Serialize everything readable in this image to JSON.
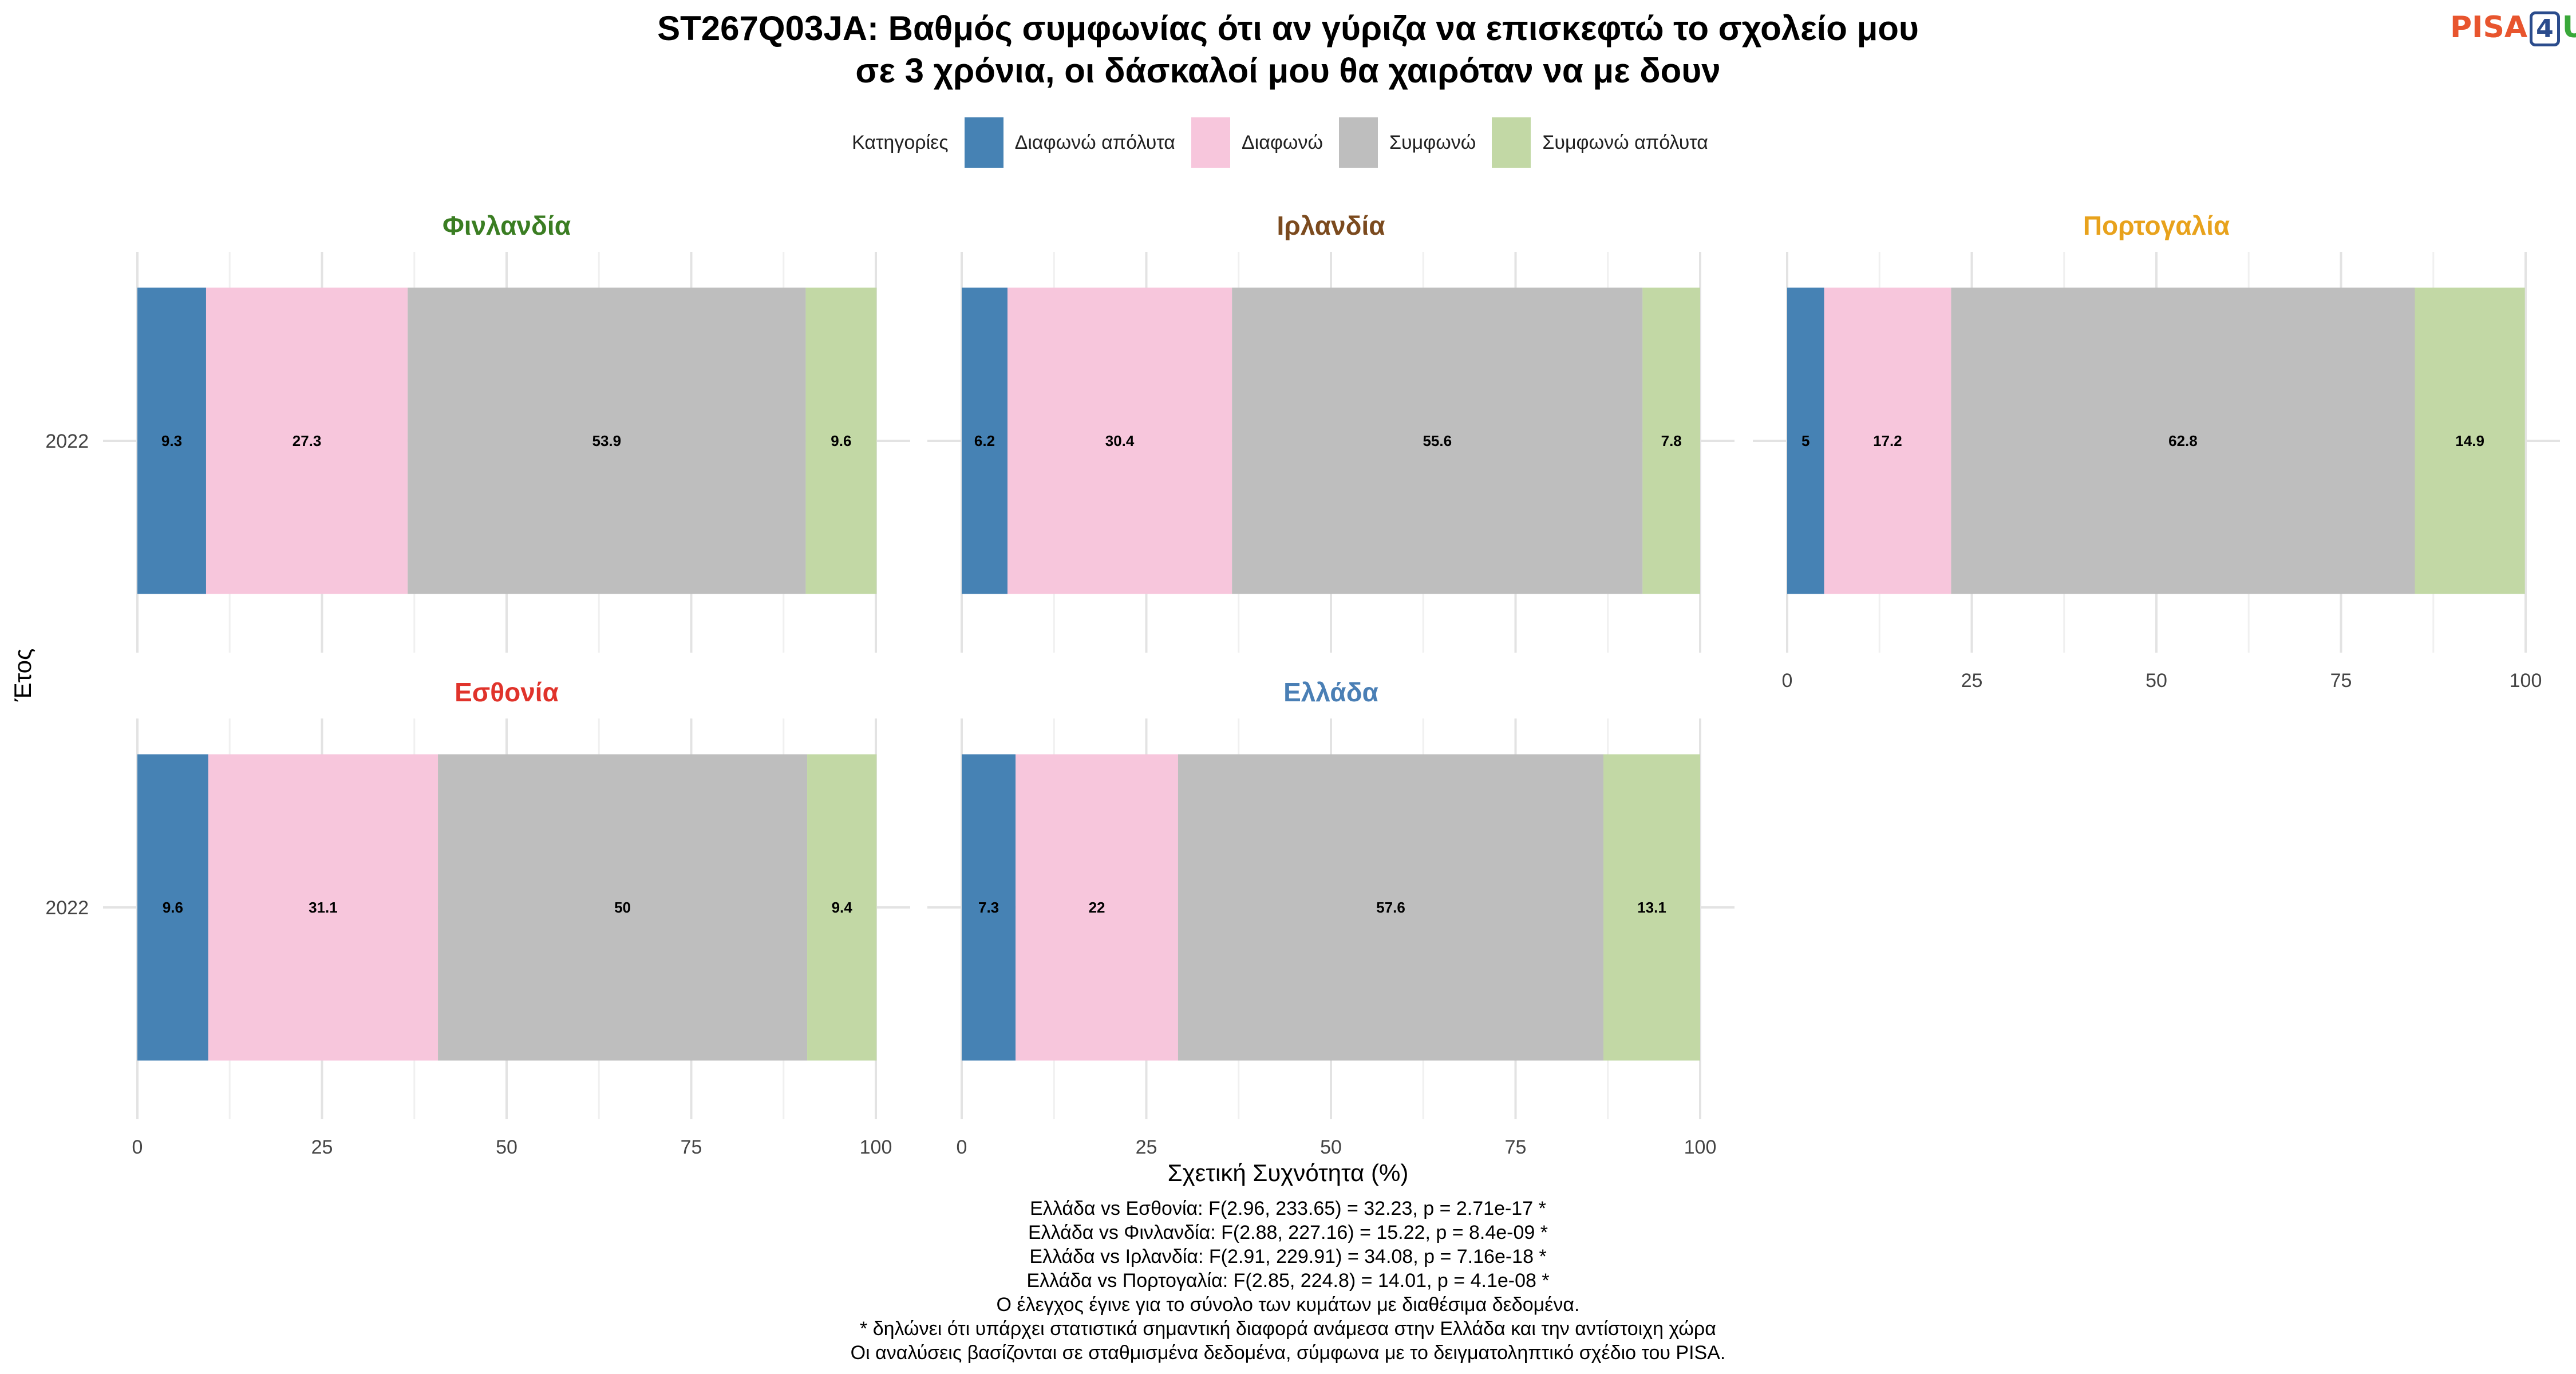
{
  "title": {
    "line1": "ST267Q03JA: Βαθμός συμφωνίας ότι αν γύριζα να επισκεφτώ το σχολείο μου",
    "line2": "σε 3 χρόνια, οι δάσκαλοί μου θα χαιρόταν να με δουν"
  },
  "logo": {
    "part1": "PISA",
    "part2": "4",
    "part3": "U"
  },
  "legend": {
    "title": "Κατηγορίες",
    "items": [
      {
        "label": "Διαφωνώ απόλυτα",
        "color": "#4682b4"
      },
      {
        "label": "Διαφωνώ",
        "color": "#f7c6dc"
      },
      {
        "label": "Συμφωνώ",
        "color": "#bebebe"
      },
      {
        "label": "Συμφωνώ απόλυτα",
        "color": "#c2d8a5"
      }
    ]
  },
  "chart_data": {
    "type": "bar",
    "orientation": "horizontal-stacked",
    "xlabel": "Σχετική Συχνότητα (%)",
    "ylabel": "Έτος",
    "xlim": [
      0,
      100
    ],
    "xticks": [
      0,
      25,
      50,
      75,
      100
    ],
    "categories": [
      "Διαφωνώ απόλυτα",
      "Διαφωνώ",
      "Συμφωνώ",
      "Συμφωνώ απόλυτα"
    ],
    "panels": [
      {
        "country": "Φινλανδία",
        "color": "#3a7d22",
        "year": "2022",
        "values": [
          9.3,
          27.3,
          53.9,
          9.6
        ]
      },
      {
        "country": "Ιρλανδία",
        "color": "#7b4a1e",
        "year": "2022",
        "values": [
          6.2,
          30.4,
          55.6,
          7.8
        ]
      },
      {
        "country": "Πορτογαλία",
        "color": "#e8a21c",
        "year": "2022",
        "values": [
          5,
          17.2,
          62.8,
          14.9
        ]
      },
      {
        "country": "Εσθονία",
        "color": "#e0332b",
        "year": "2022",
        "values": [
          9.6,
          31.1,
          50,
          9.4
        ]
      },
      {
        "country": "Ελλάδα",
        "color": "#4a7fb5",
        "year": "2022",
        "values": [
          7.3,
          22,
          57.6,
          13.1
        ]
      }
    ]
  },
  "footer": [
    "Ελλάδα vs Εσθονία: F(2.96, 233.65) = 32.23, p = 2.71e-17 *",
    "Ελλάδα vs Φινλανδία: F(2.88, 227.16) = 15.22, p = 8.4e-09 *",
    "Ελλάδα vs Ιρλανδία: F(2.91, 229.91) = 34.08, p = 7.16e-18 *",
    "Ελλάδα vs Πορτογαλία: F(2.85, 224.8) = 14.01, p = 4.1e-08 *",
    "Ο έλεγχος έγινε για το σύνολο των κυμάτων με διαθέσιμα δεδομένα.",
    "* δηλώνει ότι υπάρχει στατιστικά σημαντική διαφορά ανάμεσα στην Ελλάδα και την αντίστοιχη χώρα",
    "Οι αναλύσεις βασίζονται σε σταθμισμένα δεδομένα, σύμφωνα με το δειγματοληπτικό σχέδιο του PISA."
  ]
}
